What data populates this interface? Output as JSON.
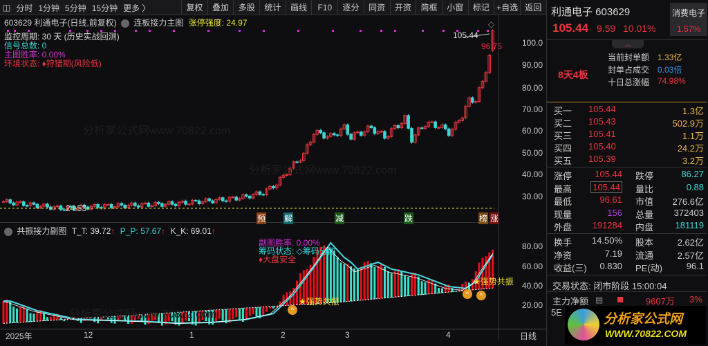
{
  "toolbar": {
    "items": [
      "分时",
      "1分钟",
      "5分钟",
      "15分钟",
      "更多 〉"
    ],
    "buttons": [
      "复权",
      "叠加",
      "多股",
      "统计",
      "画线",
      "F10",
      "逐分",
      "同资",
      "开资",
      "简框",
      "小窗",
      "标记",
      "+自选",
      "返回"
    ]
  },
  "main": {
    "title": "603629 利通电子(日线,前复权)",
    "indicator": "连板接力主图",
    "strength_label": "张停强度: 24.97",
    "lines": [
      {
        "text": "监控周期: 30 天 (历史实战回测)",
        "color": "#dddddd"
      },
      {
        "text": "信号总数: 0",
        "color": "#3ad6d6"
      },
      {
        "text": "主图胜率: 0.00%",
        "color": "#d12fd1"
      },
      {
        "text": "环境状态: ♦狩猎期(风险低)",
        "color": "#e8343f"
      }
    ],
    "high_label": "105.44",
    "last_label": "96.75",
    "low_label": "24.53",
    "signals": [
      {
        "text": "预",
        "bg": "#8a3d12"
      },
      {
        "text": "解",
        "bg": "#12686a"
      },
      {
        "text": "减",
        "bg": "#1c5a1c"
      },
      {
        "text": "跌",
        "bg": "#1c5a1c"
      },
      {
        "text": "榜",
        "bg": "#7a4a10"
      },
      {
        "text": "涨",
        "bg": "#7a1010"
      }
    ],
    "price_ticks": [
      "100.0",
      "90.00",
      "80.00",
      "70.00",
      "60.00",
      "50.00",
      "40.00",
      "30.00"
    ],
    "price_keypoints": [
      [
        0,
        29
      ],
      [
        17,
        26
      ],
      [
        30,
        27
      ],
      [
        50,
        28
      ],
      [
        66,
        30
      ],
      [
        71,
        31
      ],
      [
        77,
        33
      ],
      [
        81,
        37
      ],
      [
        85,
        44
      ],
      [
        89,
        50
      ],
      [
        92,
        60
      ],
      [
        97,
        58
      ],
      [
        101,
        62
      ],
      [
        103,
        58
      ],
      [
        109,
        62
      ],
      [
        113,
        58
      ],
      [
        119,
        66
      ],
      [
        121,
        57
      ],
      [
        125,
        64
      ],
      [
        129,
        63
      ],
      [
        132,
        60
      ],
      [
        134,
        63
      ],
      [
        136,
        68
      ],
      [
        138,
        74
      ],
      [
        140,
        75
      ],
      [
        142,
        82
      ],
      [
        144,
        95
      ],
      [
        145,
        105.44
      ]
    ]
  },
  "sub": {
    "title": "共振接力副图",
    "tt": "T_T: 39.72",
    "pp": "P_P: 57.67",
    "kk": "K_K: 69.01",
    "win": "副图胜率: 0.00%",
    "chip": "筹码状态: ◇筹码分散",
    "market": "♦大盘安全",
    "resonance": "★强势共振",
    "resonance2": "★强势共振",
    "ticks": [
      "80.00",
      "60.00",
      "40.00",
      "20.00"
    ],
    "hist_keypoints": [
      [
        0,
        25
      ],
      [
        8,
        15
      ],
      [
        20,
        6
      ],
      [
        40,
        4
      ],
      [
        50,
        2
      ],
      [
        60,
        3
      ],
      [
        70,
        6
      ],
      [
        78,
        12
      ],
      [
        84,
        32
      ],
      [
        90,
        60
      ],
      [
        95,
        85
      ],
      [
        99,
        70
      ],
      [
        101,
        65
      ],
      [
        103,
        58
      ],
      [
        109,
        65
      ],
      [
        113,
        58
      ],
      [
        121,
        52
      ],
      [
        130,
        40
      ],
      [
        135,
        38
      ],
      [
        138,
        45
      ],
      [
        141,
        62
      ],
      [
        144,
        78
      ]
    ]
  },
  "dates": [
    "2025年",
    "12",
    "1",
    "2",
    "3",
    "4",
    "日线"
  ],
  "quote": {
    "name": "利通电子 603629",
    "sector": "消费电子",
    "sector_pct": "1.57%",
    "price": "105.44",
    "change": "9.59",
    "pct": "10.01%",
    "boards": "8天4板",
    "seal_label": "当前封单额",
    "seal": "1.33亿",
    "ratio_label": "封单占成交",
    "ratio": "0.03倍",
    "ten_label": "十日总涨幅",
    "ten": "74.98%",
    "bids": [
      {
        "l": "买一",
        "p": "105.44",
        "v": "1.3亿"
      },
      {
        "l": "买二",
        "p": "105.43",
        "v": "502.9万"
      },
      {
        "l": "买三",
        "p": "105.41",
        "v": "1.1万"
      },
      {
        "l": "买四",
        "p": "105.40",
        "v": "24.2万"
      },
      {
        "l": "买五",
        "p": "105.39",
        "v": "3.2万"
      }
    ],
    "stats": [
      [
        "涨停",
        "105.44",
        "跌停",
        "86.27"
      ],
      [
        "最高",
        "105.44",
        "量比",
        "0.88"
      ],
      [
        "最低",
        "96.61",
        "市值",
        "276.6亿"
      ],
      [
        "现量",
        "156",
        "总量",
        "372403"
      ],
      [
        "外盘",
        "191284",
        "内盘",
        "181119"
      ]
    ],
    "stats2": [
      [
        "换手",
        "14.50%",
        "股本",
        "2.62亿"
      ],
      [
        "净资",
        "7.19",
        "流通",
        "2.57亿"
      ],
      [
        "收益(三)",
        "0.830",
        "PE(动)",
        "96.1"
      ]
    ],
    "status": "交易状态: 闭市阶段 15:00:04",
    "flow_label": "主力净额",
    "flow": "9607万",
    "flow_pct": "3%",
    "r5": "5E",
    "logo": "分析家公式网",
    "logo_url": "WWW.70822.COM"
  },
  "watermark": "分析家公式网www.70822.com"
}
